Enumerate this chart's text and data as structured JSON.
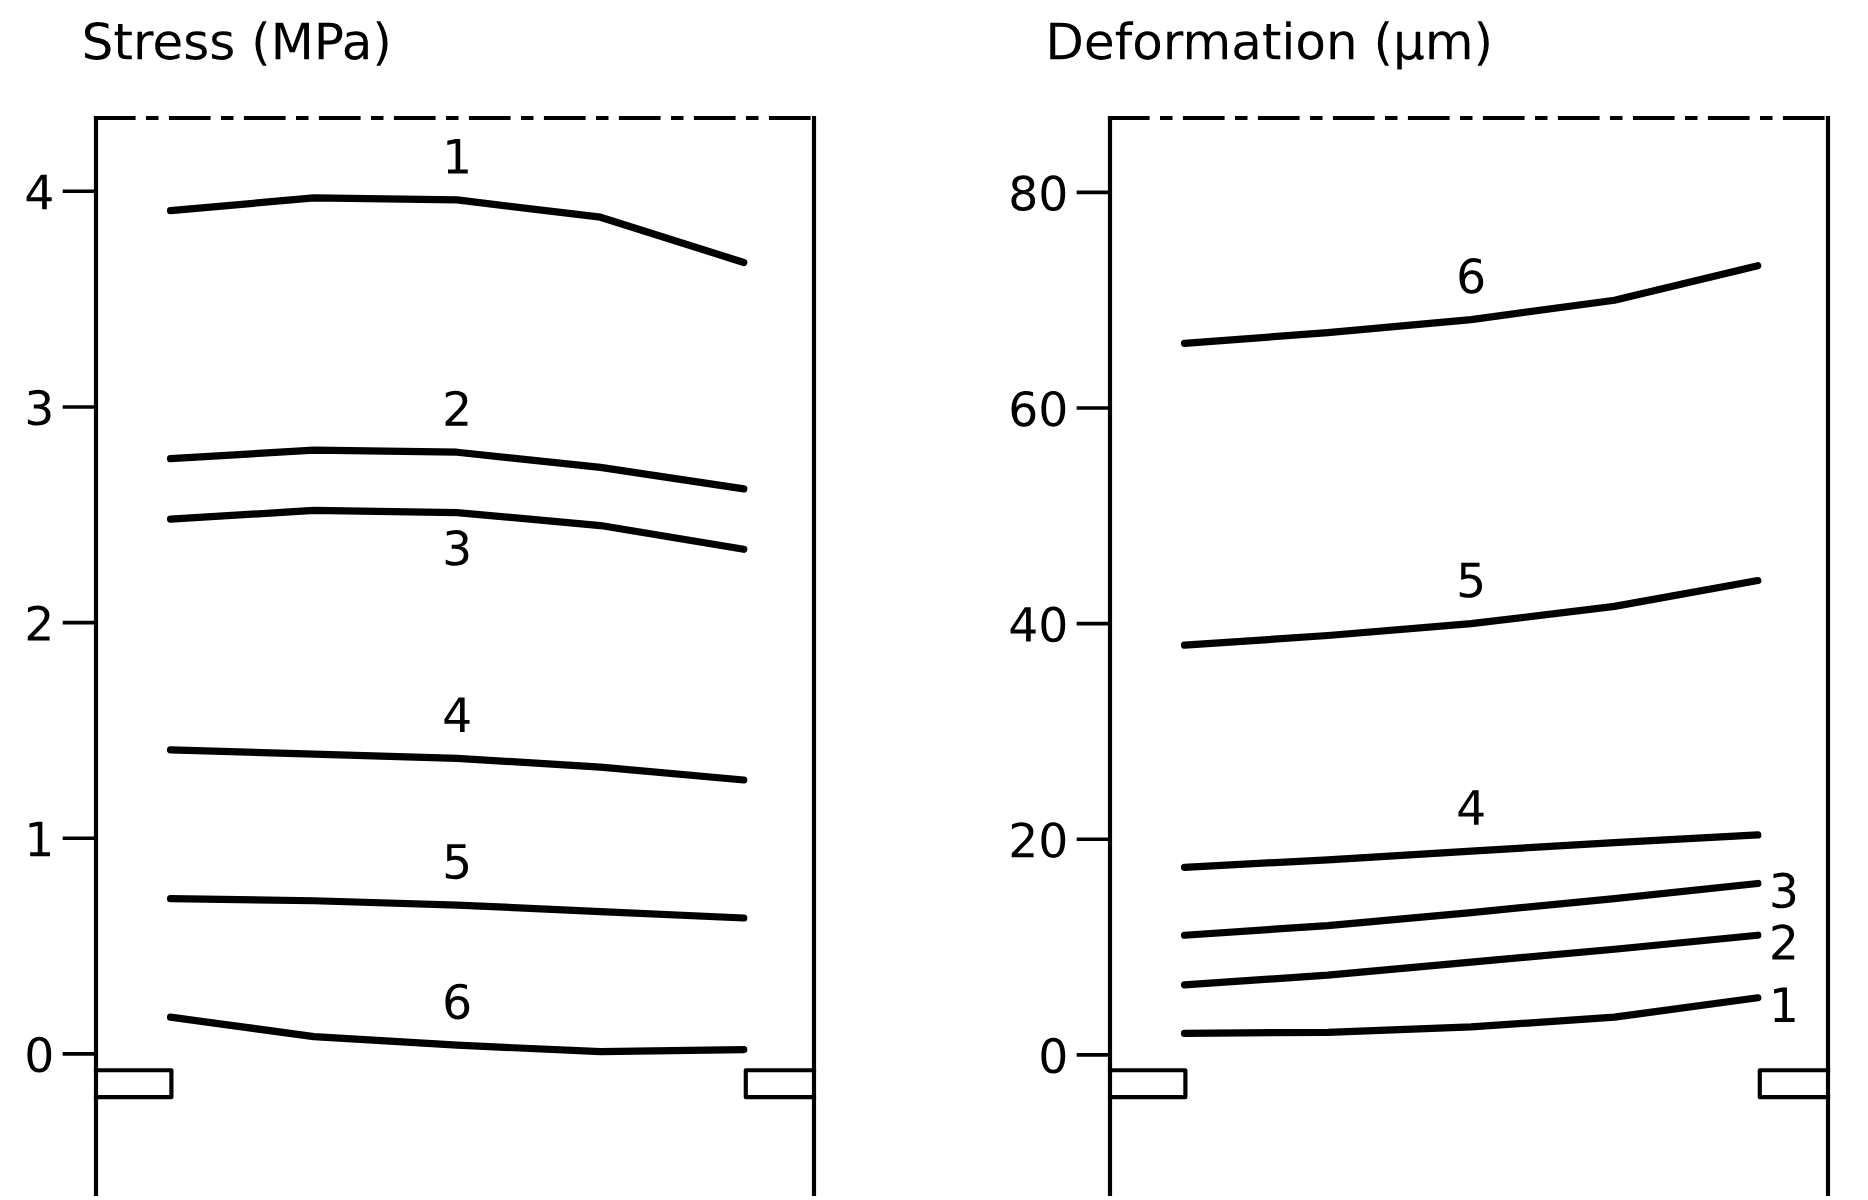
{
  "chart_data": [
    {
      "type": "line",
      "title": "Stress (MPa)",
      "categories": [
        null,
        null,
        null,
        null,
        null
      ],
      "ylim": [
        -0.65,
        4.34
      ],
      "yticks": [
        0,
        1,
        2,
        3,
        4
      ],
      "grid": false,
      "legend": false,
      "marker": "none",
      "line_style": "solid",
      "series": [
        {
          "name": "1",
          "color": "#000000",
          "values": [
            3.91,
            3.97,
            3.96,
            3.88,
            3.67
          ]
        },
        {
          "name": "2",
          "color": "#000000",
          "values": [
            2.76,
            2.8,
            2.79,
            2.72,
            2.62
          ]
        },
        {
          "name": "3",
          "color": "#000000",
          "values": [
            2.48,
            2.52,
            2.51,
            2.45,
            2.34
          ]
        },
        {
          "name": "4",
          "color": "#000000",
          "values": [
            1.41,
            1.39,
            1.37,
            1.33,
            1.27
          ]
        },
        {
          "name": "5",
          "color": "#000000",
          "values": [
            0.72,
            0.71,
            0.69,
            0.66,
            0.63
          ]
        },
        {
          "name": "6",
          "color": "#000000",
          "values": [
            0.17,
            0.08,
            0.04,
            0.01,
            0.02
          ]
        }
      ]
    },
    {
      "type": "line",
      "title": "Deformation (µm)",
      "categories": [
        null,
        null,
        null,
        null,
        null
      ],
      "ylim": [
        -12.9,
        86.9
      ],
      "yticks": [
        0,
        20,
        40,
        60,
        80
      ],
      "grid": false,
      "legend": false,
      "marker": "none",
      "line_style": "solid",
      "series": [
        {
          "name": "1",
          "color": "#000000",
          "values": [
            2.0,
            2.1,
            2.6,
            3.5,
            5.3
          ]
        },
        {
          "name": "2",
          "color": "#000000",
          "values": [
            6.5,
            7.4,
            8.6,
            9.8,
            11.1
          ]
        },
        {
          "name": "3",
          "color": "#000000",
          "values": [
            11.1,
            12.0,
            13.2,
            14.5,
            15.9
          ]
        },
        {
          "name": "4",
          "color": "#000000",
          "values": [
            17.4,
            18.1,
            18.9,
            19.7,
            20.4
          ]
        },
        {
          "name": "5",
          "color": "#000000",
          "values": [
            38.0,
            38.9,
            40.0,
            41.6,
            44.0
          ]
        },
        {
          "name": "6",
          "color": "#000000",
          "values": [
            66.0,
            67.0,
            68.2,
            70.0,
            73.2
          ]
        }
      ]
    }
  ]
}
